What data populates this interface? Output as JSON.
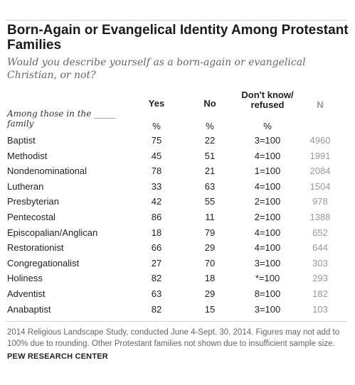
{
  "title": "Born-Again or Evangelical Identity Among Protestant Families",
  "subtitle": "Would you describe yourself as a born-again or evangelical Christian, or not?",
  "row_header": "Among those in the _____ family",
  "columns": {
    "yes": "Yes",
    "no": "No",
    "dk_line1": "Don't know/",
    "dk_line2": "refused",
    "n": "N"
  },
  "percent_row": {
    "yes": "%",
    "no": "%",
    "dk": "%"
  },
  "chart_data": {
    "type": "table",
    "title": "Born-Again or Evangelical Identity Among Protestant Families",
    "columns": [
      "Yes",
      "No",
      "Don't know/ refused",
      "N"
    ],
    "rows": [
      {
        "family": "Baptist",
        "yes": "75",
        "no": "22",
        "dk": "3=100",
        "n": "4960"
      },
      {
        "family": "Methodist",
        "yes": "45",
        "no": "51",
        "dk": "4=100",
        "n": "1991"
      },
      {
        "family": "Nondenominational",
        "yes": "78",
        "no": "21",
        "dk": "1=100",
        "n": "2084"
      },
      {
        "family": "Lutheran",
        "yes": "33",
        "no": "63",
        "dk": "4=100",
        "n": "1504"
      },
      {
        "family": "Presbyterian",
        "yes": "42",
        "no": "55",
        "dk": "2=100",
        "n": "978"
      },
      {
        "family": "Pentecostal",
        "yes": "86",
        "no": "11",
        "dk": "2=100",
        "n": "1388"
      },
      {
        "family": "Episcopalian/Anglican",
        "yes": "18",
        "no": "79",
        "dk": "4=100",
        "n": "652"
      },
      {
        "family": "Restorationist",
        "yes": "66",
        "no": "29",
        "dk": "4=100",
        "n": "644"
      },
      {
        "family": "Congregationalist",
        "yes": "27",
        "no": "70",
        "dk": "3=100",
        "n": "303"
      },
      {
        "family": "Holiness",
        "yes": "82",
        "no": "18",
        "dk": "*=100",
        "n": "293"
      },
      {
        "family": "Adventist",
        "yes": "63",
        "no": "29",
        "dk": "8=100",
        "n": "182"
      },
      {
        "family": "Anabaptist",
        "yes": "82",
        "no": "15",
        "dk": "3=100",
        "n": "103"
      }
    ]
  },
  "note": "2014 Religious Landscape Study, conducted June 4-Sept. 30, 2014. Figures may not add to 100% due to rounding. Other Protestant families not shown due to insufficient sample size.",
  "source": "PEW RESEARCH CENTER",
  "colors": {
    "n_column": "#999999",
    "rule": "#d6d6d6",
    "subtitle": "#666666"
  }
}
